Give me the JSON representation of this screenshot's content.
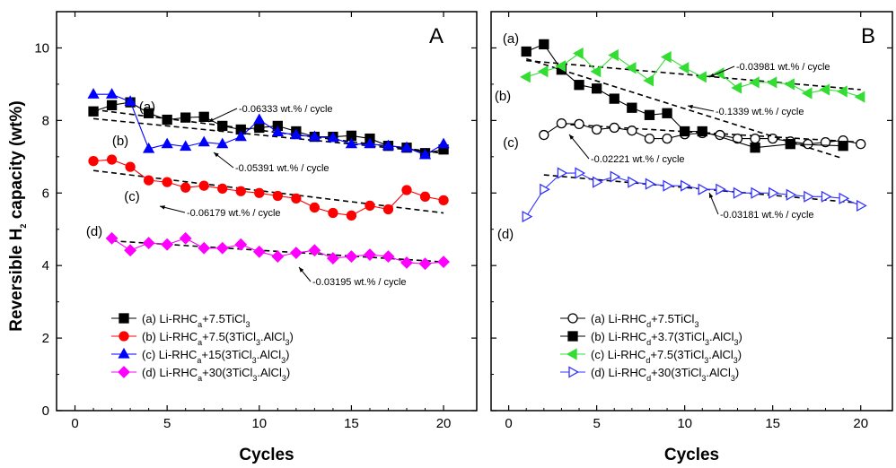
{
  "y_axis_title": "Reversible H₂ capacity (wt%)",
  "chart_data": [
    {
      "type": "line",
      "panel_label": "A",
      "xlabel": "Cycles",
      "xlim": [
        -1,
        21.8
      ],
      "ylim": [
        0,
        11
      ],
      "x_ticks": [
        0,
        5,
        10,
        15,
        20
      ],
      "y_ticks": [
        0,
        2,
        4,
        6,
        8,
        10
      ],
      "grid": false,
      "legend_position": "bottom-left",
      "series": [
        {
          "name": "(a) Li-RHCa+7.5TiCl3",
          "legend": {
            "pre": "(a) Li-RHC",
            "sub1": "a",
            "mid": "+7.5TiCl",
            "sub2": "3",
            "post": ""
          },
          "curve_label": "(a)",
          "marker": "square",
          "filled": true,
          "color": "#000000",
          "line_color": "#000000",
          "x": [
            1,
            2,
            3,
            4,
            5,
            6,
            7,
            8,
            9,
            10,
            11,
            12,
            13,
            14,
            15,
            16,
            17,
            18,
            19,
            20
          ],
          "y": [
            8.25,
            8.42,
            8.5,
            8.2,
            8.02,
            8.08,
            8.1,
            7.85,
            7.75,
            7.8,
            7.85,
            7.7,
            7.55,
            7.55,
            7.58,
            7.5,
            7.3,
            7.25,
            7.1,
            7.2
          ],
          "fit": {
            "x": [
              1,
              20
            ],
            "y": [
              8.3,
              7.1
            ]
          }
        },
        {
          "name": "(b) Li-RHCa+7.5(3TiCl3.AlCl3)",
          "legend": {
            "pre": "(b) Li-RHC",
            "sub1": "a",
            "mid": "+7.5(3TiCl",
            "sub2": "3",
            "post": ".AlCl",
            "sub3": "3",
            "end": ")"
          },
          "curve_label": "(b)",
          "marker": "circle",
          "filled": true,
          "color": "#ff0000",
          "line_color": "#ff0000",
          "x": [
            1,
            2,
            3,
            4,
            5,
            6,
            7,
            8,
            9,
            10,
            11,
            12,
            13,
            14,
            15,
            16,
            17,
            18,
            19,
            20
          ],
          "y": [
            6.88,
            6.92,
            6.72,
            6.35,
            6.3,
            6.15,
            6.2,
            6.12,
            6.05,
            6.0,
            5.92,
            5.85,
            5.6,
            5.45,
            5.38,
            5.65,
            5.55,
            6.08,
            5.9,
            5.8
          ],
          "fit": {
            "x": [
              1,
              20
            ],
            "y": [
              6.62,
              5.45
            ]
          }
        },
        {
          "name": "(c) Li-RHCa+15(3TiCl3.AlCl3)",
          "legend": {
            "pre": "(c) Li-RHC",
            "sub1": "a",
            "mid": "+15(3TiCl",
            "sub2": "3",
            "post": ".AlCl",
            "sub3": "3",
            "end": ")"
          },
          "curve_label": "(c)",
          "marker": "triangle-up",
          "filled": true,
          "color": "#0000ff",
          "line_color": "#0000ff",
          "x": [
            1,
            2,
            3,
            4,
            5,
            6,
            7,
            8,
            9,
            10,
            11,
            12,
            13,
            14,
            15,
            16,
            17,
            18,
            19,
            20
          ],
          "y": [
            8.72,
            8.72,
            8.52,
            7.22,
            7.35,
            7.28,
            7.4,
            7.35,
            7.55,
            8.02,
            7.68,
            7.6,
            7.55,
            7.52,
            7.35,
            7.35,
            7.3,
            7.25,
            7.05,
            7.35
          ],
          "fit": {
            "x": [
              1,
              20
            ],
            "y": [
              8.05,
              7.1
            ]
          }
        },
        {
          "name": "(d) Li-RHCa+30(3TiCl3.AlCl3)",
          "legend": {
            "pre": "(d) Li-RHC",
            "sub1": "a",
            "mid": "+30(3TiCl",
            "sub2": "3",
            "post": ".AlCl",
            "sub3": "3",
            "end": ")"
          },
          "curve_label": "(d)",
          "marker": "diamond",
          "filled": true,
          "color": "#ff00ff",
          "line_color": "#ff00ff",
          "x": [
            2,
            3,
            4,
            5,
            6,
            7,
            8,
            9,
            10,
            11,
            12,
            13,
            14,
            15,
            16,
            17,
            18,
            19,
            20
          ],
          "y": [
            4.75,
            4.42,
            4.62,
            4.58,
            4.75,
            4.48,
            4.48,
            4.58,
            4.38,
            4.25,
            4.35,
            4.42,
            4.2,
            4.25,
            4.3,
            4.25,
            4.08,
            4.05,
            4.1
          ],
          "fit": {
            "x": [
              2,
              20
            ],
            "y": [
              4.68,
              4.1
            ]
          }
        }
      ],
      "annotations": [
        "-0.06333 wt.% / cycle",
        "-0.05391 wt.% / cycle",
        "-0.06179 wt.% / cycle",
        "-0.03195 wt.% / cycle"
      ]
    },
    {
      "type": "line",
      "panel_label": "B",
      "xlabel": "Cycles",
      "xlim": [
        -1,
        21.8
      ],
      "ylim": [
        0,
        11
      ],
      "x_ticks": [
        0,
        5,
        10,
        15,
        20
      ],
      "y_ticks": [
        0,
        2,
        4,
        6,
        8,
        10
      ],
      "grid": false,
      "legend_position": "bottom-center",
      "series": [
        {
          "name": "(a) Li-RHCd+7.5TiCl3",
          "legend": {
            "pre": "(a) Li-RHC",
            "sub1": "d",
            "mid": "+7.5TiCl",
            "sub2": "3",
            "post": ""
          },
          "curve_label": "(a)",
          "marker": "circle",
          "filled": false,
          "color": "#000000",
          "line_color": "#000000",
          "x": [
            2,
            3,
            4,
            5,
            6,
            7,
            8,
            9,
            10,
            11,
            12,
            13,
            14,
            15,
            16,
            17,
            18,
            19,
            20
          ],
          "y": [
            7.6,
            7.92,
            7.9,
            7.75,
            7.8,
            7.72,
            7.5,
            7.5,
            7.62,
            7.65,
            7.6,
            7.5,
            7.5,
            7.5,
            7.42,
            7.35,
            7.4,
            7.45,
            7.35
          ],
          "fit": {
            "x": [
              3,
              20
            ],
            "y": [
              7.9,
              7.4
            ]
          }
        },
        {
          "name": "(b) Li-RHCd+3.7(3TiCl3.AlCl3)",
          "legend": {
            "pre": "(b) Li-RHC",
            "sub1": "d",
            "mid": "+3.7(3TiCl",
            "sub2": "3",
            "post": ".AlCl",
            "sub3": "3",
            "end": ")"
          },
          "curve_label": "(b)",
          "marker": "square",
          "filled": true,
          "color": "#000000",
          "line_color": "#000000",
          "x": [
            1,
            2,
            3,
            4,
            5,
            6,
            7,
            8,
            9,
            10,
            11,
            14,
            16,
            19
          ],
          "y": [
            9.9,
            10.1,
            9.4,
            8.98,
            8.88,
            8.6,
            8.35,
            8.15,
            8.2,
            7.7,
            7.7,
            7.25,
            7.35,
            7.3
          ],
          "fit": {
            "x": [
              1,
              19
            ],
            "y": [
              9.7,
              6.95
            ]
          }
        },
        {
          "name": "(c) Li-RHCd+7.5(3TiCl3.AlCl3)",
          "legend": {
            "pre": "(c) Li-RHC",
            "sub1": "d",
            "mid": "+7.5(3TiCl",
            "sub2": "3",
            "post": ".AlCl",
            "sub3": "3",
            "end": ")"
          },
          "curve_label": "(c)",
          "marker": "triangle-left",
          "filled": true,
          "color": "#33dd33",
          "line_color": "#33dd33",
          "x": [
            1,
            2,
            3,
            4,
            5,
            6,
            7,
            8,
            9,
            10,
            11,
            12,
            13,
            14,
            15,
            16,
            17,
            18,
            19,
            20
          ],
          "y": [
            9.2,
            9.35,
            9.5,
            9.85,
            9.35,
            9.8,
            9.45,
            9.1,
            9.75,
            9.45,
            9.2,
            9.3,
            8.9,
            9.05,
            9.05,
            9.0,
            8.75,
            8.85,
            8.8,
            8.65
          ],
          "fit": {
            "x": [
              1,
              20
            ],
            "y": [
              9.65,
              8.85
            ]
          }
        },
        {
          "name": "(d) Li-RHCd+30(3TiCl3.AlCl3)",
          "legend": {
            "pre": "(d) Li-RHC",
            "sub1": "d",
            "mid": "+30(3TiCl",
            "sub2": "3",
            "post": ".AlCl",
            "sub3": "3",
            "end": ")"
          },
          "curve_label": "(d)",
          "marker": "triangle-right",
          "filled": false,
          "color": "#3333ff",
          "line_color": "#3333ff",
          "x": [
            1,
            2,
            3,
            4,
            5,
            6,
            7,
            8,
            9,
            10,
            11,
            12,
            13,
            14,
            15,
            16,
            17,
            18,
            19,
            20
          ],
          "y": [
            5.35,
            6.1,
            6.55,
            6.55,
            6.3,
            6.45,
            6.3,
            6.25,
            6.2,
            6.2,
            6.1,
            6.1,
            6.0,
            6.0,
            6.0,
            5.95,
            5.9,
            5.9,
            5.85,
            5.65
          ],
          "fit": {
            "x": [
              2,
              20
            ],
            "y": [
              6.5,
              5.72
            ]
          }
        }
      ],
      "annotations": [
        "-0.03981 wt.% / cycle",
        "-0.1339 wt.% / cycle",
        "-0.02221 wt.% / cycle",
        "-0.03181 wt.% / cycle"
      ]
    }
  ]
}
